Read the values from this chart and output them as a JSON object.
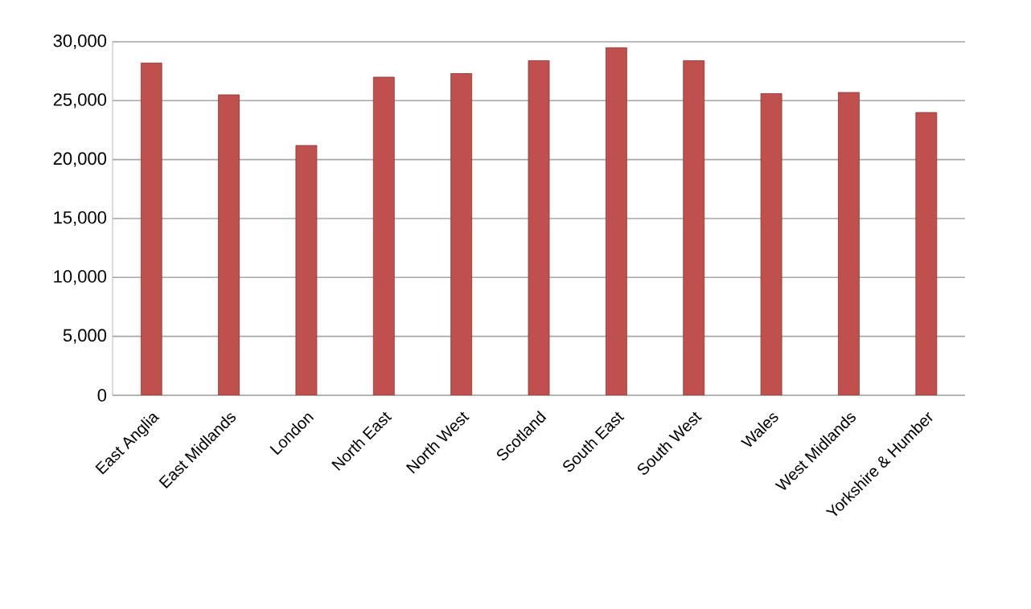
{
  "chart_data": {
    "type": "bar",
    "categories": [
      "East Anglia",
      "East Midlands",
      "London",
      "North East",
      "North West",
      "Scotland",
      "South East",
      "South West",
      "Wales",
      "West Midlands",
      "Yorkshire & Humber"
    ],
    "values": [
      28200,
      25500,
      21200,
      27000,
      27300,
      28400,
      29500,
      28400,
      25600,
      25700,
      24000
    ],
    "color": "#c0504d",
    "ylim": [
      0,
      30000
    ],
    "yticks": [
      {
        "value": 0,
        "label": "0"
      },
      {
        "value": 5000,
        "label": "5,000"
      },
      {
        "value": 10000,
        "label": "10,000"
      },
      {
        "value": 15000,
        "label": "15,000"
      },
      {
        "value": 20000,
        "label": "20,000"
      },
      {
        "value": 25000,
        "label": "25,000"
      },
      {
        "value": 30000,
        "label": "30,000"
      }
    ],
    "grid": "y"
  }
}
